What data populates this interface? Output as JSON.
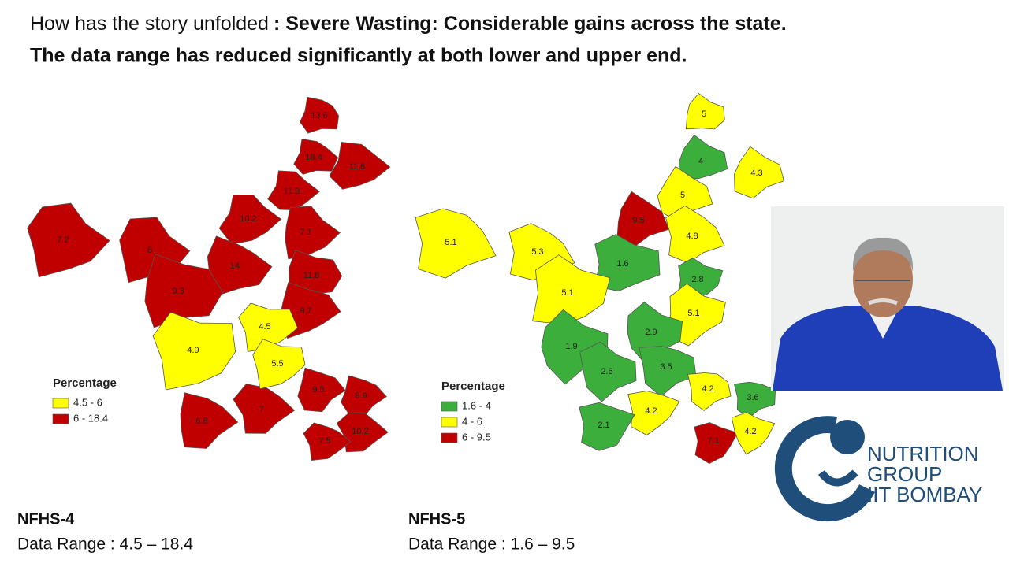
{
  "title": {
    "prefix": "How has the story unfolded",
    "bold": ": Severe Wasting: Considerable gains across the state.",
    "line2": "The data range has reduced significantly at both lower and upper end."
  },
  "maps": [
    {
      "name": "NFHS-4",
      "range": "Data Range : 4.5 – 18.4",
      "legend": {
        "title": "Percentage",
        "items": [
          {
            "label": "4.5 - 6",
            "color": "#ffff00"
          },
          {
            "label": "6 - 18.4",
            "color": "#c00000"
          }
        ]
      },
      "districts": [
        {
          "value": 13.6,
          "color": "#c00000"
        },
        {
          "value": 18.4,
          "color": "#c00000"
        },
        {
          "value": 11.6,
          "color": "#c00000"
        },
        {
          "value": 11.9,
          "color": "#c00000"
        },
        {
          "value": 10.2,
          "color": "#c00000"
        },
        {
          "value": 7.1,
          "color": "#c00000"
        },
        {
          "value": 7.2,
          "color": "#c00000"
        },
        {
          "value": 8,
          "color": "#c00000"
        },
        {
          "value": 14,
          "color": "#c00000"
        },
        {
          "value": 11.8,
          "color": "#c00000"
        },
        {
          "value": 9.3,
          "color": "#c00000"
        },
        {
          "value": 9.7,
          "color": "#c00000"
        },
        {
          "value": 9.5,
          "color": "#c00000"
        },
        {
          "value": 8.9,
          "color": "#c00000"
        },
        {
          "value": 6.8,
          "color": "#c00000"
        },
        {
          "value": 7,
          "color": "#c00000"
        },
        {
          "value": 10.2,
          "color": "#c00000"
        },
        {
          "value": 7.5,
          "color": "#c00000"
        },
        {
          "value": 4.5,
          "color": "#ffff00"
        },
        {
          "value": 4.9,
          "color": "#ffff00"
        },
        {
          "value": 5.5,
          "color": "#ffff00"
        }
      ]
    },
    {
      "name": "NFHS-5",
      "range": "Data Range : 1.6 – 9.5",
      "legend": {
        "title": "Percentage",
        "items": [
          {
            "label": "1.6 - 4",
            "color": "#3cae3c"
          },
          {
            "label": "4 - 6",
            "color": "#ffff00"
          },
          {
            "label": "6 - 9.5",
            "color": "#c00000"
          }
        ]
      },
      "districts": [
        {
          "value": 5,
          "color": "#ffff00"
        },
        {
          "value": 4,
          "color": "#3cae3c"
        },
        {
          "value": 4.3,
          "color": "#ffff00"
        },
        {
          "value": 5,
          "color": "#ffff00"
        },
        {
          "value": 9.5,
          "color": "#c00000"
        },
        {
          "value": 4.8,
          "color": "#ffff00"
        },
        {
          "value": 5.1,
          "color": "#ffff00"
        },
        {
          "value": 5.3,
          "color": "#ffff00"
        },
        {
          "value": 1.6,
          "color": "#3cae3c"
        },
        {
          "value": 2.8,
          "color": "#3cae3c"
        },
        {
          "value": 5.1,
          "color": "#ffff00"
        },
        {
          "value": 5.1,
          "color": "#ffff00"
        },
        {
          "value": 2.9,
          "color": "#3cae3c"
        },
        {
          "value": 1.9,
          "color": "#3cae3c"
        },
        {
          "value": 2.6,
          "color": "#3cae3c"
        },
        {
          "value": 3.5,
          "color": "#3cae3c"
        },
        {
          "value": 4.2,
          "color": "#ffff00"
        },
        {
          "value": 3.6,
          "color": "#3cae3c"
        },
        {
          "value": 4.2,
          "color": "#ffff00"
        },
        {
          "value": 2.1,
          "color": "#3cae3c"
        },
        {
          "value": 7.1,
          "color": "#c00000"
        },
        {
          "value": 4.2,
          "color": "#ffff00"
        }
      ]
    }
  ],
  "logo": {
    "lines": [
      "NUTRITION",
      "GROUP",
      "IIT BOMBAY"
    ]
  }
}
